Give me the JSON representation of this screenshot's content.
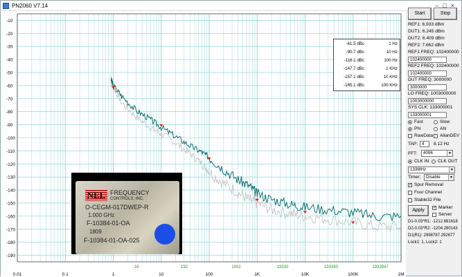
{
  "window": {
    "title": "PN2060 V7.14"
  },
  "plot": {
    "y_ticks": [
      "-10",
      "-20",
      "-30",
      "-40",
      "-50",
      "-60",
      "-70",
      "-80",
      "-90",
      "-100",
      "-110",
      "-120",
      "-130",
      "-140",
      "-150",
      "-160",
      "-170",
      "-180",
      "-190"
    ],
    "x_ticks": [
      "0.01",
      "0.1",
      "1",
      "10",
      "100",
      "1K",
      "10K",
      "100K",
      "1M"
    ],
    "spur_labels": [
      "18",
      "192",
      "1932",
      "19330",
      "193393",
      "1933947"
    ],
    "colors": {
      "main_trace": "#0b6e6e",
      "ref_trace": "#c8c8c8",
      "marker": "#e02020",
      "grid": "#7fd0d0",
      "spur_label": "#1aa01a"
    }
  },
  "chart_data": {
    "type": "line",
    "xscale": "log",
    "xlim": [
      0.01,
      1000000
    ],
    "ylim": [
      -195,
      -5
    ],
    "series": [
      {
        "x": [
          0.9,
          1,
          1.5,
          3,
          6,
          10,
          20,
          40,
          70,
          100,
          200,
          400,
          700,
          1000,
          2000,
          5000,
          10000,
          30000,
          100000,
          300000,
          1000000
        ],
        "y": [
          -55,
          -60,
          -68,
          -79,
          -86,
          -92,
          -99,
          -106,
          -111,
          -115,
          -124,
          -132,
          -137,
          -143,
          -147,
          -151,
          -153,
          -155,
          -157,
          -160,
          -160
        ]
      },
      {
        "x": [
          0.9,
          1,
          1.5,
          3,
          6,
          10,
          20,
          40,
          70,
          100,
          200,
          400,
          700,
          1000,
          2000,
          5000,
          10000,
          30000,
          100000,
          300000,
          1000000
        ],
        "y": [
          -57,
          -61,
          -73,
          -84,
          -92,
          -97,
          -104,
          -112,
          -120,
          -126,
          -135,
          -142,
          -148,
          -150,
          -155,
          -158,
          -160,
          -162,
          -165,
          -168,
          -168
        ]
      }
    ],
    "markers": {
      "x": [
        1,
        10,
        100,
        1000,
        10000,
        100000
      ],
      "y": [
        -61.5,
        -90.7,
        -116.1,
        -147.7,
        -157.1,
        -165.1
      ]
    }
  },
  "table": [
    {
      "dbc": "-61.5 dBc",
      "freq": "1 Hz"
    },
    {
      "dbc": "-90.7 dBc",
      "freq": "10 Hz"
    },
    {
      "dbc": "-116.1 dBc",
      "freq": "100 Hz"
    },
    {
      "dbc": "-147.7 dBc",
      "freq": "1 KHz"
    },
    {
      "dbc": "-157.1 dBc",
      "freq": "10 KHz"
    },
    {
      "dbc": "-165.1 dBc",
      "freq": "100 KHz"
    }
  ],
  "photo": {
    "nel": "NEL",
    "brand": "FREQUENCY",
    "controls": "CONTROLS, INC.",
    "part": "O-CEGM-017DWEP-R",
    "freq": "1.000 GHz",
    "lot": "F-10384-01-OA",
    "date": "1809",
    "lot2": "F-10384-01-OA-025"
  },
  "panel": {
    "start": "Start",
    "stop": "Stop",
    "ref1": "REF1: 6.933 dBm",
    "dut1": "DUT1: 6.245 dBm",
    "dut2": "DUT2: 6.409 dBm",
    "ref2": "REF2: 7.662 dBm",
    "ref1_freq_label": "REF1 FREQ: 102400000",
    "ref1_freq_val": "102400000",
    "ref2_freq_label": "REF2 FREQ: 102400000",
    "ref2_freq_val": "102400000",
    "dut_freq_label": "DUT  FREQ: 3000000",
    "dut_freq_val": "3000000",
    "lo_freq_label": "LO FREQ: 1003000000",
    "lo_freq_val": "1003000000",
    "sys_clk_label": "SYS CLK: 133000001",
    "sys_clk_val": "133000001",
    "fast": "Fast",
    "slow": "Slow",
    "pn": "PN",
    "an": "AN",
    "rawdata": "RawData",
    "allandev": "AllanDEV",
    "tap_label": "TAP:",
    "tap_val": "4",
    "tap_freq": "8.12 Hz",
    "fft_label": "FFT:",
    "fft_val": "4096",
    "clk_in": "CLK IN",
    "clk_out": "CLK OUT",
    "clk_sel": "133MHz",
    "timer_label": "Timer:",
    "timer_val": "Disable",
    "spur_removal": "Spur Removal",
    "four_channel": "Four Channel",
    "stable32": "Stable32 File",
    "apply": "Apply",
    "marker": "Marker",
    "server": "Server",
    "d1": "D1-0.03*R1: -1212.681618",
    "d2": "D2-0.03*R2: -1204.280143",
    "d1r1": "D1(R1): 2998787.292677",
    "lock": "Lock1: 1, Lock2: 1"
  }
}
